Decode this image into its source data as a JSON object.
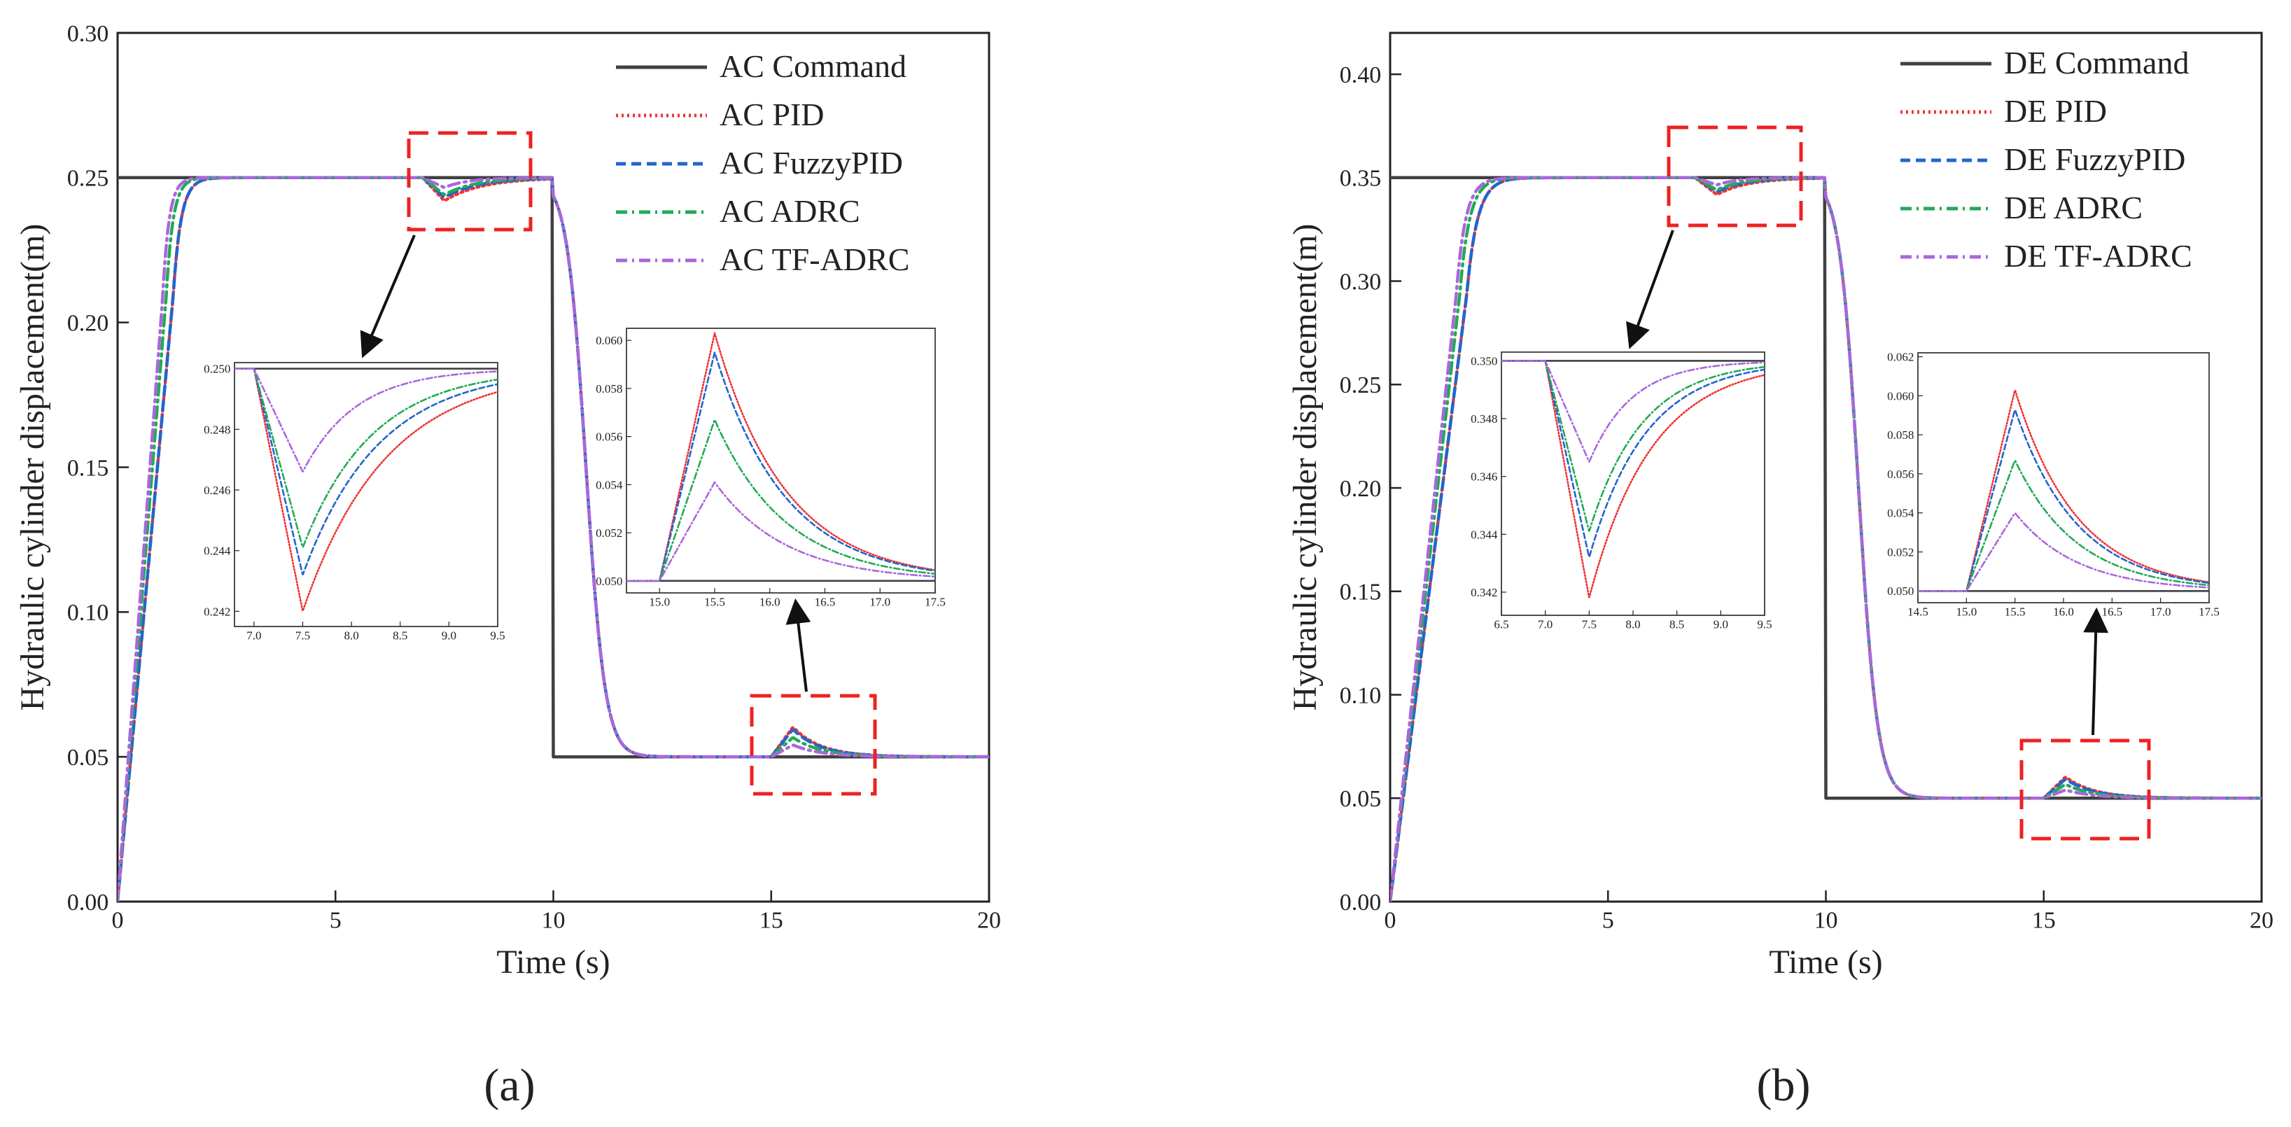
{
  "chart_data": [
    {
      "type": "line",
      "panel_label": "(a)",
      "xlabel": "Time (s)",
      "ylabel": "Hydraulic cylinder displacement(m)",
      "xlim": [
        0,
        20
      ],
      "ylim": [
        0,
        0.3
      ],
      "xticks": [
        "0",
        "5",
        "10",
        "15",
        "20"
      ],
      "yticks": [
        "0.00",
        "0.05",
        "0.10",
        "0.15",
        "0.20",
        "0.25",
        "0.30"
      ],
      "legend_position": "top-right",
      "command": {
        "low": 0.05,
        "high": 0.25,
        "step_up_time": 0,
        "step_down_time": 10
      },
      "disturbance": {
        "time": 7.0,
        "dip_end": 7.5,
        "recovery_end": 9.5,
        "time2": 15.0,
        "peak_end": 15.5
      },
      "series": [
        {
          "name": "AC Command",
          "style": "solid",
          "color": "#404040"
        },
        {
          "name": "AC PID",
          "style": "dotted",
          "color": "#ee3333",
          "rise_time": 1.6,
          "dip": 0.242,
          "peak": 0.0603
        },
        {
          "name": "AC FuzzyPID",
          "style": "dashed",
          "color": "#2266cc",
          "rise_time": 1.6,
          "dip": 0.2432,
          "peak": 0.0595
        },
        {
          "name": "AC ADRC",
          "style": "dashdot",
          "color": "#22aa55",
          "rise_time": 1.4,
          "dip": 0.2441,
          "peak": 0.0567
        },
        {
          "name": "AC TF-ADRC",
          "style": "dashdot",
          "color": "#aa66dd",
          "rise_time": 1.3,
          "dip": 0.2466,
          "peak": 0.0541
        }
      ],
      "insets": [
        {
          "xlim": [
            6.8,
            9.5
          ],
          "ylim": [
            0.2415,
            0.2502
          ],
          "xticks": [
            "7.0",
            "7.5",
            "8.0",
            "8.5",
            "9.0",
            "9.5"
          ],
          "yticks": [
            "0.242",
            "0.244",
            "0.246",
            "0.248",
            "0.250"
          ]
        },
        {
          "xlim": [
            14.7,
            17.5
          ],
          "ylim": [
            0.0495,
            0.0605
          ],
          "xticks": [
            "15.0",
            "15.5",
            "16.0",
            "16.5",
            "17.0",
            "17.5"
          ],
          "yticks": [
            "0.050",
            "0.052",
            "0.054",
            "0.056",
            "0.058",
            "0.060"
          ]
        }
      ]
    },
    {
      "type": "line",
      "panel_label": "(b)",
      "xlabel": "Time (s)",
      "ylabel": "Hydraulic cylinder displacement(m)",
      "xlim": [
        0,
        20
      ],
      "ylim": [
        0,
        0.42
      ],
      "xticks": [
        "0",
        "5",
        "10",
        "15",
        "20"
      ],
      "yticks": [
        "0.00",
        "0.05",
        "0.10",
        "0.15",
        "0.20",
        "0.25",
        "0.30",
        "0.35",
        "0.40"
      ],
      "legend_position": "top-right",
      "command": {
        "low": 0.05,
        "high": 0.35,
        "step_up_time": 0,
        "step_down_time": 10
      },
      "disturbance": {
        "time": 7.0,
        "dip_end": 7.5,
        "recovery_end": 9.5,
        "time2": 15.0,
        "peak_end": 15.5
      },
      "series": [
        {
          "name": "DE Command",
          "style": "solid",
          "color": "#404040"
        },
        {
          "name": "DE PID",
          "style": "dotted",
          "color": "#ee3333",
          "rise_time": 2.2,
          "dip": 0.3418,
          "peak": 0.0603
        },
        {
          "name": "DE FuzzyPID",
          "style": "dashed",
          "color": "#2266cc",
          "rise_time": 2.2,
          "dip": 0.3432,
          "peak": 0.0593
        },
        {
          "name": "DE ADRC",
          "style": "dashdot",
          "color": "#22aa55",
          "rise_time": 2.0,
          "dip": 0.3441,
          "peak": 0.0567
        },
        {
          "name": "DE TF-ADRC",
          "style": "dashdot",
          "color": "#aa66dd",
          "rise_time": 1.9,
          "dip": 0.3465,
          "peak": 0.054
        }
      ],
      "insets": [
        {
          "xlim": [
            6.5,
            9.5
          ],
          "ylim": [
            0.3412,
            0.3503
          ],
          "xticks": [
            "6.5",
            "7.0",
            "7.5",
            "8.0",
            "8.5",
            "9.0",
            "9.5"
          ],
          "yticks": [
            "0.342",
            "0.344",
            "0.346",
            "0.348",
            "0.350"
          ]
        },
        {
          "xlim": [
            14.5,
            17.5
          ],
          "ylim": [
            0.0494,
            0.0622
          ],
          "xticks": [
            "14.5",
            "15.0",
            "15.5",
            "16.0",
            "16.5",
            "17.0",
            "17.5"
          ],
          "yticks": [
            "0.050",
            "0.052",
            "0.054",
            "0.056",
            "0.058",
            "0.060",
            "0.062"
          ]
        }
      ]
    }
  ]
}
